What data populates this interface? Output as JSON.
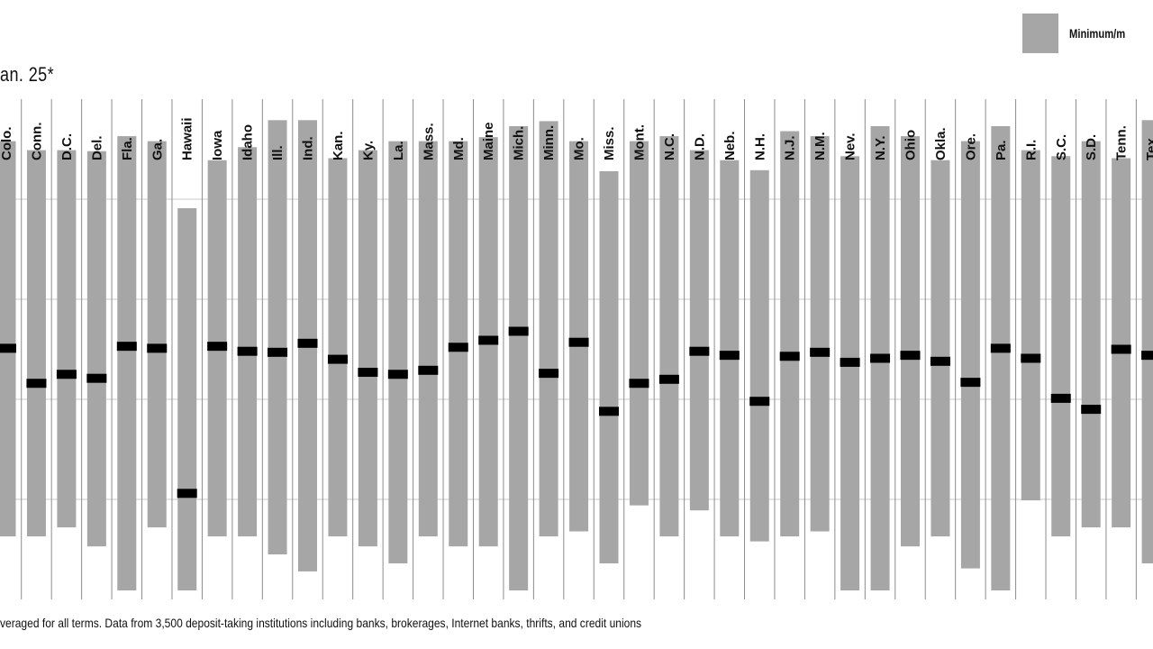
{
  "page": {
    "title_fragment": "an. 25*",
    "footnote": "veraged for all terms. Data from 3,500 deposit-taking institutions including banks, brokerages, Internet banks, thrifts, and credit unions"
  },
  "legend": {
    "range_label": "Minimum/m"
  },
  "colors": {
    "range_bar": "#a6a6a6",
    "average_marker": "#000000",
    "column_divider": "#8c8c8c",
    "gridline": "#c8c8c8"
  },
  "chart_data": {
    "type": "bar",
    "subtype": "floating range with average marker",
    "categories": [
      "Colo.",
      "Conn.",
      "D.C.",
      "Del.",
      "Fla.",
      "Ga.",
      "Hawaii",
      "Iowa",
      "Idaho",
      "Ill.",
      "Ind.",
      "Kan.",
      "Ky.",
      "La.",
      "Mass.",
      "Md.",
      "Maine",
      "Mich.",
      "Minn.",
      "Mo.",
      "Miss.",
      "Mont.",
      "N.C.",
      "N.D.",
      "Neb.",
      "N.H.",
      "N.J.",
      "N.M.",
      "Nev.",
      "N.Y.",
      "Ohio",
      "Okla.",
      "Ore.",
      "Pa.",
      "R.I.",
      "S.C.",
      "S.D.",
      "Tenn.",
      "Tex."
    ],
    "series": [
      {
        "name": "Minimum/m",
        "role": "range",
        "high": [
          4.58,
          4.49,
          4.49,
          4.48,
          4.63,
          4.58,
          3.91,
          4.39,
          4.52,
          4.79,
          4.79,
          4.41,
          4.49,
          4.58,
          4.58,
          4.58,
          4.62,
          4.73,
          4.78,
          4.58,
          4.28,
          4.58,
          4.63,
          4.49,
          4.39,
          4.29,
          4.68,
          4.63,
          4.43,
          4.73,
          4.63,
          4.39,
          4.58,
          4.73,
          4.49,
          4.43,
          4.58,
          4.41,
          4.79
        ],
        "low": [
          0.63,
          0.63,
          0.72,
          0.53,
          0.09,
          0.72,
          0.09,
          0.63,
          0.63,
          0.45,
          0.28,
          0.63,
          0.53,
          0.36,
          0.63,
          0.53,
          0.53,
          0.09,
          0.63,
          0.68,
          0.36,
          0.94,
          0.63,
          0.89,
          0.63,
          0.58,
          0.63,
          0.68,
          0.09,
          0.09,
          0.53,
          0.63,
          0.31,
          0.09,
          0.99,
          0.63,
          0.72,
          0.72,
          0.36
        ]
      },
      {
        "role": "average",
        "values": [
          2.51,
          2.16,
          2.25,
          2.21,
          2.53,
          2.51,
          1.06,
          2.53,
          2.48,
          2.47,
          2.56,
          2.4,
          2.27,
          2.25,
          2.29,
          2.52,
          2.59,
          2.68,
          2.26,
          2.57,
          1.88,
          2.16,
          2.2,
          2.48,
          2.44,
          1.98,
          2.43,
          2.47,
          2.37,
          2.41,
          2.44,
          2.38,
          2.17,
          2.51,
          2.41,
          2.01,
          1.9,
          2.5,
          2.44
        ]
      }
    ],
    "ylim": [
      0,
      5.0
    ],
    "grid": true,
    "gridlines_at": [
      0,
      1,
      2,
      3,
      4,
      5
    ],
    "legend_position": "top-right"
  }
}
